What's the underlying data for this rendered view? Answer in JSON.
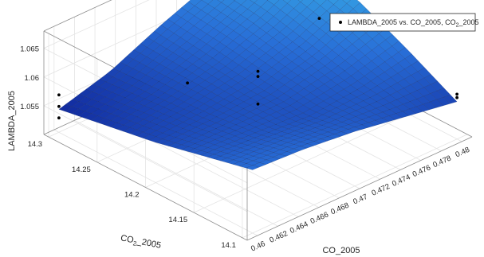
{
  "chart_data": {
    "type": "surface3d",
    "title": "",
    "xlabel": "CO_2005",
    "ylabel": "CO₂_2005",
    "ylabel_parts": {
      "base": "CO",
      "sub": "2",
      "rest": "_2005"
    },
    "zlabel": "LAMBDA_2005",
    "xlim": [
      0.459,
      0.481
    ],
    "ylim": [
      14.095,
      14.305
    ],
    "zlim": [
      1.05,
      1.068
    ],
    "x_ticks": [
      "0.46",
      "0.462",
      "0.464",
      "0.466",
      "0.468",
      "0.47",
      "0.472",
      "0.474",
      "0.476",
      "0.478",
      "0.48"
    ],
    "y_ticks": [
      "14.1",
      "14.15",
      "14.2",
      "14.25",
      "14.3"
    ],
    "z_ticks": [
      "1.055",
      "1.06",
      "1.065"
    ],
    "grid": true,
    "legend_position": "top-right",
    "legend": {
      "label": "LAMBDA_2005 vs. CO_2005, CO",
      "sub": "2",
      "rest": "_2005"
    },
    "surface": {
      "colormap": "blue-cyan",
      "model_grid": {
        "x": [
          0.46,
          0.465,
          0.47,
          0.475,
          0.48
        ],
        "y": [
          14.1,
          14.15,
          14.2,
          14.25,
          14.3
        ],
        "z": [
          [
            1.061,
            1.0605,
            1.0595,
            1.058,
            1.0565
          ],
          [
            1.059,
            1.0585,
            1.058,
            1.059,
            1.061
          ],
          [
            1.057,
            1.0575,
            1.0585,
            1.061,
            1.065
          ],
          [
            1.0555,
            1.057,
            1.0595,
            1.063,
            1.0675
          ],
          [
            1.054,
            1.0565,
            1.0605,
            1.064,
            1.0685
          ]
        ]
      }
    },
    "points": [
      {
        "x": 0.46,
        "y": 14.3,
        "z": 1.0565
      },
      {
        "x": 0.46,
        "y": 14.3,
        "z": 1.0545
      },
      {
        "x": 0.46,
        "y": 14.3,
        "z": 1.0525
      },
      {
        "x": 0.465,
        "y": 14.22,
        "z": 1.0615
      },
      {
        "x": 0.47,
        "y": 14.2,
        "z": 1.0612
      },
      {
        "x": 0.47,
        "y": 14.2,
        "z": 1.0603
      },
      {
        "x": 0.47,
        "y": 14.2,
        "z": 1.0555
      },
      {
        "x": 0.476,
        "y": 14.2,
        "z": 1.0655
      },
      {
        "x": 0.48,
        "y": 14.1,
        "z": 1.0578
      },
      {
        "x": 0.48,
        "y": 14.1,
        "z": 1.0572
      }
    ]
  }
}
